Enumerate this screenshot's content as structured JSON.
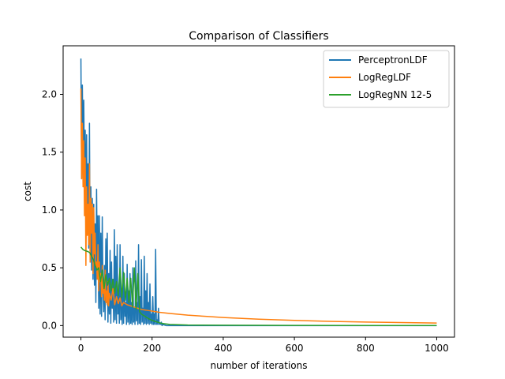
{
  "chart_data": {
    "type": "line",
    "title": "Comparison of Classifiers",
    "xlabel": "number of iterations",
    "ylabel": "cost",
    "xlim": [
      -50,
      1050
    ],
    "ylim": [
      -0.1,
      2.42
    ],
    "xticks": [
      0,
      200,
      400,
      600,
      800,
      1000
    ],
    "yticks": [
      0.0,
      0.5,
      1.0,
      1.5,
      2.0
    ],
    "xtick_labels": [
      "0",
      "200",
      "400",
      "600",
      "800",
      "1000"
    ],
    "ytick_labels": [
      "0.0",
      "0.5",
      "1.0",
      "1.5",
      "2.0"
    ],
    "grid": false,
    "legend_position": "upper right",
    "series": [
      {
        "name": "PerceptronLDF",
        "color": "#1f77b4",
        "x": [
          0,
          2,
          4,
          6,
          8,
          10,
          12,
          14,
          16,
          18,
          20,
          22,
          24,
          26,
          28,
          30,
          32,
          34,
          36,
          38,
          40,
          42,
          44,
          46,
          48,
          50,
          52,
          54,
          56,
          58,
          60,
          62,
          64,
          66,
          68,
          70,
          72,
          74,
          76,
          78,
          80,
          82,
          84,
          86,
          88,
          90,
          92,
          94,
          96,
          98,
          100,
          102,
          104,
          106,
          108,
          110,
          112,
          114,
          116,
          118,
          120,
          122,
          124,
          126,
          128,
          130,
          132,
          134,
          136,
          138,
          140,
          142,
          144,
          146,
          148,
          150,
          152,
          154,
          156,
          158,
          160,
          162,
          164,
          166,
          168,
          170,
          172,
          174,
          176,
          178,
          180,
          182,
          184,
          186,
          188,
          190,
          192,
          194,
          196,
          198,
          200,
          202,
          204,
          206,
          208,
          210,
          212,
          214,
          216,
          218,
          220,
          222,
          224,
          226,
          228,
          230,
          240,
          260,
          300,
          400,
          500,
          600,
          700,
          800,
          900,
          1000
        ],
        "y": [
          2.31,
          1.27,
          2.08,
          1.52,
          1.95,
          1.28,
          1.69,
          1.05,
          1.65,
          0.82,
          1.4,
          0.67,
          1.75,
          0.55,
          1.2,
          0.48,
          1.1,
          0.4,
          1.05,
          0.35,
          0.88,
          0.2,
          1.18,
          0.45,
          0.95,
          0.15,
          0.95,
          0.1,
          0.8,
          0.08,
          0.94,
          0.3,
          0.12,
          0.52,
          0.05,
          0.75,
          0.2,
          0.8,
          0.03,
          0.45,
          0.1,
          0.65,
          0.02,
          0.55,
          0.15,
          0.4,
          0.03,
          0.83,
          0.05,
          0.6,
          0.02,
          0.7,
          0.1,
          0.3,
          0.02,
          0.7,
          0.05,
          0.25,
          0.01,
          0.6,
          0.02,
          0.45,
          0.08,
          0.2,
          0.01,
          0.53,
          0.03,
          0.3,
          0.01,
          0.45,
          0.02,
          0.2,
          0.01,
          0.5,
          0.03,
          0.15,
          0.01,
          0.56,
          0.04,
          0.2,
          0.01,
          0.7,
          0.02,
          0.25,
          0.01,
          0.57,
          0.03,
          0.15,
          0.01,
          0.6,
          0.02,
          0.3,
          0.01,
          0.45,
          0.02,
          0.2,
          0.01,
          0.36,
          0.02,
          0.1,
          0.01,
          0.25,
          0.01,
          0.1,
          0.01,
          0.66,
          0.01,
          0.05,
          0.01,
          0.15,
          0.01,
          0.02,
          0.01,
          0.03,
          0.0,
          0.01,
          0.0,
          0.0,
          0.0,
          0.0,
          0.0,
          0.0,
          0.0,
          0.0,
          0.0,
          0.0
        ]
      },
      {
        "name": "LogRegLDF",
        "color": "#ff7f0e",
        "x": [
          0,
          2,
          4,
          6,
          8,
          10,
          12,
          14,
          16,
          18,
          20,
          22,
          24,
          26,
          28,
          30,
          32,
          34,
          36,
          38,
          40,
          42,
          44,
          46,
          48,
          50,
          52,
          54,
          56,
          58,
          60,
          62,
          64,
          66,
          68,
          70,
          72,
          74,
          76,
          78,
          80,
          85,
          90,
          95,
          100,
          105,
          110,
          115,
          120,
          130,
          140,
          150,
          160,
          170,
          180,
          190,
          200,
          220,
          250,
          300,
          350,
          400,
          500,
          600,
          700,
          800,
          900,
          1000
        ],
        "y": [
          2.05,
          1.27,
          1.75,
          1.2,
          1.6,
          0.95,
          1.45,
          0.52,
          1.2,
          0.78,
          1.05,
          0.7,
          1.4,
          0.55,
          1.1,
          0.8,
          1.05,
          0.45,
          1.02,
          0.62,
          0.8,
          0.5,
          0.55,
          0.4,
          0.7,
          0.3,
          0.55,
          0.38,
          0.45,
          0.25,
          0.52,
          0.28,
          0.35,
          0.22,
          0.48,
          0.2,
          0.3,
          0.18,
          0.38,
          0.17,
          0.28,
          0.22,
          0.32,
          0.18,
          0.25,
          0.19,
          0.24,
          0.17,
          0.2,
          0.18,
          0.17,
          0.16,
          0.15,
          0.14,
          0.135,
          0.13,
          0.125,
          0.115,
          0.105,
          0.09,
          0.08,
          0.07,
          0.055,
          0.045,
          0.037,
          0.031,
          0.026,
          0.022
        ]
      },
      {
        "name": "LogRegNN 12-5",
        "color": "#2ca02c",
        "x": [
          0,
          5,
          10,
          15,
          20,
          25,
          30,
          35,
          40,
          45,
          50,
          55,
          60,
          65,
          70,
          75,
          80,
          85,
          90,
          95,
          100,
          105,
          110,
          115,
          120,
          125,
          130,
          135,
          140,
          145,
          150,
          155,
          160,
          165,
          170,
          180,
          190,
          200,
          210,
          220,
          230,
          250,
          300,
          400,
          500,
          600,
          800,
          1000
        ],
        "y": [
          0.68,
          0.66,
          0.65,
          0.645,
          0.64,
          0.63,
          0.6,
          0.57,
          0.52,
          0.48,
          0.5,
          0.38,
          0.48,
          0.32,
          0.44,
          0.35,
          0.41,
          0.3,
          0.4,
          0.28,
          0.38,
          0.26,
          0.5,
          0.24,
          0.46,
          0.22,
          0.41,
          0.2,
          0.41,
          0.16,
          0.5,
          0.14,
          0.45,
          0.12,
          0.1,
          0.08,
          0.06,
          0.045,
          0.035,
          0.025,
          0.018,
          0.01,
          0.005,
          0.003,
          0.002,
          0.0015,
          0.001,
          0.001
        ]
      }
    ]
  }
}
